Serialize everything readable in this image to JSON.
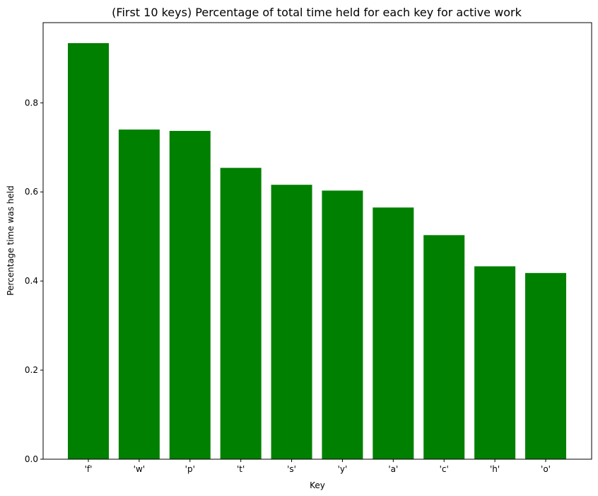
{
  "chart_data": {
    "type": "bar",
    "title": "(First 10 keys) Percentage of total time held for each key for active work",
    "xlabel": "Key",
    "ylabel": "Percentage time was held",
    "categories": [
      "'f'",
      "'w'",
      "'p'",
      "'t'",
      "'s'",
      "'y'",
      "'a'",
      "'c'",
      "'h'",
      "'o'"
    ],
    "values": [
      0.934,
      0.74,
      0.737,
      0.654,
      0.616,
      0.603,
      0.565,
      0.503,
      0.433,
      0.418
    ],
    "ylim": [
      0,
      0.98
    ],
    "yticks": [
      0.0,
      0.2,
      0.4,
      0.6,
      0.8
    ],
    "ytick_labels": [
      "0.0",
      "0.2",
      "0.4",
      "0.6",
      "0.8"
    ],
    "bar_color": "#008000",
    "grid": false,
    "legend": "none"
  }
}
